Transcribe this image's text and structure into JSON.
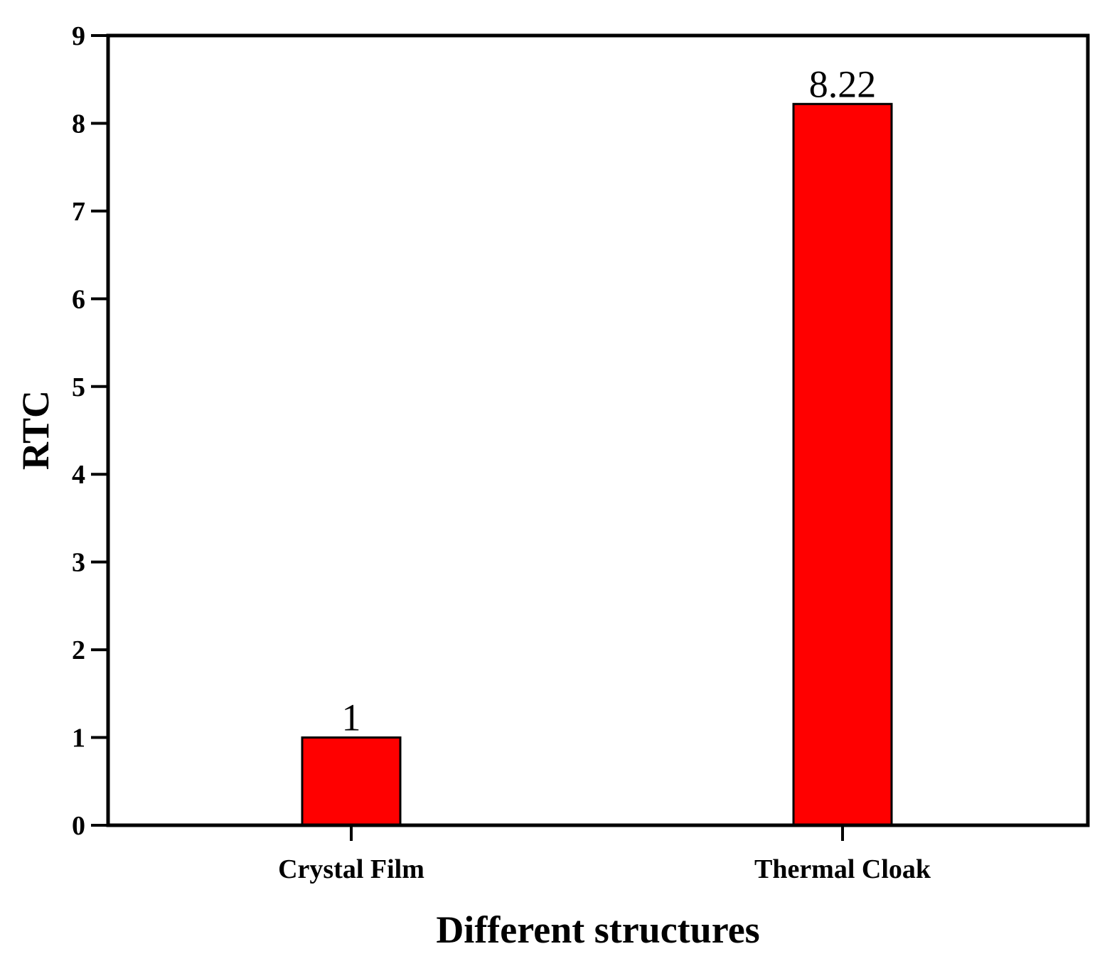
{
  "chart_data": {
    "type": "bar",
    "categories": [
      "Crystal Film",
      "Thermal Cloak"
    ],
    "values": [
      1,
      8.22
    ],
    "data_labels": [
      "1",
      "8.22"
    ],
    "xlabel": "Different structures",
    "ylabel": "RTC",
    "ylim": [
      0,
      9
    ],
    "yticks": [
      "0",
      "1",
      "2",
      "3",
      "4",
      "5",
      "6",
      "7",
      "8",
      "9"
    ],
    "bar_color": "#ff0000",
    "grid": false,
    "legend": "none"
  }
}
